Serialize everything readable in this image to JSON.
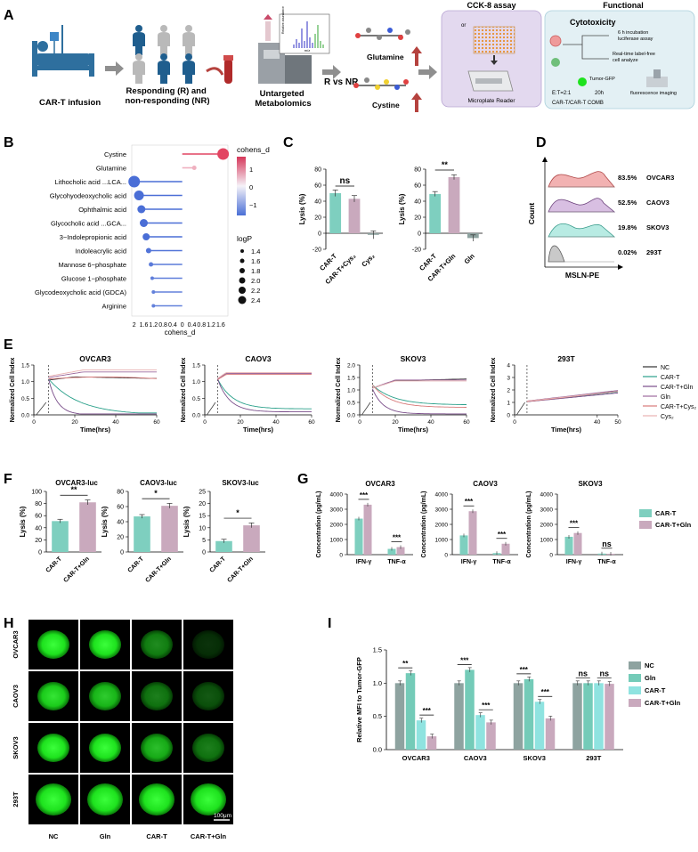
{
  "colors": {
    "teal": "#7ecfbf",
    "mauve": "#c9a9bd",
    "gray": "#8ea3a0",
    "cyan": "#8fe3e0",
    "panelA_purple": "#e3d9ef",
    "panelA_blue": "#e3f0f4",
    "bed": "#2e6f9e",
    "person_blue": "#1f5e8e",
    "person_gray": "#b9b9b9",
    "red_arrow": "#b5423e"
  },
  "panel_letters": [
    "A",
    "B",
    "C",
    "D",
    "E",
    "F",
    "G",
    "H",
    "I"
  ],
  "panelA": {
    "car_t": "CAR-T infusion",
    "responders": "Responding (R) and\nnon-responding (NR)",
    "metabolomics": "Untargeted\nMetabolomics",
    "r_vs_nr": "R vs NR",
    "glutamine": "Glutamine",
    "cystine": "Cystine",
    "cck8_title": "CCK-8 assay",
    "plate_reader": "Microplate Reader",
    "functional_title": "Functional",
    "cytotoxicity": "Cytotoxicity",
    "step1": "6 h incubation\nluciferase assay",
    "step2": "Real-time label-free\ncell analyze",
    "et_ratio": "E:T=2:1",
    "hours": "20h",
    "tumor_gfp": "Tumor-GFP",
    "fluor": "fluorescence imaging",
    "comb": "CAR-T/CAR-T COMB",
    "or": "or",
    "mini_ylabel": "Relative abundance",
    "mini_xlabel": "m/z"
  },
  "panelB": {
    "legend_color_title": "cohens_d",
    "legend_color_ticks": [
      "1",
      "0",
      "−1"
    ],
    "legend_size_title": "logP",
    "legend_size_values": [
      "1.4",
      "1.6",
      "1.8",
      "2.0",
      "2.2",
      "2.4"
    ],
    "xlabel": "cohens_d",
    "xticklabels": [
      "2",
      "1.6",
      "1.2",
      "0.8",
      "0.4",
      "0",
      "0.4",
      "0.8",
      "1.2",
      "1.6"
    ],
    "metabolites": [
      {
        "name": "Cystine",
        "d": 1.7,
        "logP": 2.3
      },
      {
        "name": "Glutamine",
        "d": 0.5,
        "logP": 1.5
      },
      {
        "name": "Lithocholic acid ...LCA...",
        "d": -2.0,
        "logP": 2.3
      },
      {
        "name": "Glycohyodeoxycholic acid",
        "d": -1.8,
        "logP": 2.1
      },
      {
        "name": "Ophthalmic acid",
        "d": -1.7,
        "logP": 1.9
      },
      {
        "name": "Glycocholic acid ...GCA...",
        "d": -1.6,
        "logP": 1.9
      },
      {
        "name": "3−Indolepropionic acid",
        "d": -1.5,
        "logP": 1.8
      },
      {
        "name": "Indoleacrylic acid",
        "d": -1.4,
        "logP": 1.6
      },
      {
        "name": "Mannose 6−phosphate",
        "d": -1.3,
        "logP": 1.5
      },
      {
        "name": "Glucose 1−phosphate",
        "d": -1.25,
        "logP": 1.4
      },
      {
        "name": "Glycodeoxycholic acid (GDCA)",
        "d": -1.2,
        "logP": 1.4
      },
      {
        "name": "Arginine",
        "d": -1.2,
        "logP": 1.4
      }
    ]
  },
  "chart_data": [
    {
      "panel": "C1",
      "type": "bar",
      "ylabel": "Lysis (%)",
      "ylim": [
        -20,
        80
      ],
      "yticks": [
        "80",
        "60",
        "40",
        "20",
        "0",
        "-20"
      ],
      "categories": [
        "CAR-T",
        "CAR-T+Cys₂",
        "Cys₂"
      ],
      "values": [
        50,
        43,
        -2
      ],
      "sig": "ns"
    },
    {
      "panel": "C2",
      "type": "bar",
      "ylabel": "Lysis (%)",
      "ylim": [
        -20,
        80
      ],
      "yticks": [
        "80",
        "60",
        "40",
        "20",
        "0",
        "-20"
      ],
      "categories": [
        "CAR-T",
        "CAR-T+Gln",
        "Gln"
      ],
      "values": [
        49,
        70,
        -6
      ],
      "sig": "**"
    },
    {
      "panel": "D",
      "type": "histogram",
      "xlabel": "MSLN-PE",
      "ylabel": "Count",
      "series": [
        {
          "name": "OVCAR3",
          "pct": "83.5%"
        },
        {
          "name": "CAOV3",
          "pct": "52.5%"
        },
        {
          "name": "SKOV3",
          "pct": "19.8%"
        },
        {
          "name": "293T",
          "pct": "0.02%"
        }
      ]
    },
    {
      "panel": "E",
      "type": "line",
      "xlabel": "Time(hrs)",
      "ylabel": "Normalized Cell Index",
      "legend": [
        "NC",
        "CAR-T",
        "CAR-T+Gln",
        "Gln",
        "CAR-T+Cys₂",
        "Cys₂"
      ],
      "plots": [
        {
          "title": "OVCAR3",
          "ymax": 1.5,
          "yticks": [
            "1.5",
            "1.0",
            "0.5",
            "0.0"
          ],
          "xmax": 60,
          "xticks": [
            "0",
            "20",
            "40",
            "60"
          ]
        },
        {
          "title": "CAOV3",
          "ymax": 1.5,
          "yticks": [
            "1.5",
            "1.0",
            "0.5",
            "0.0"
          ],
          "xmax": 60,
          "xticks": [
            "0",
            "20",
            "40",
            "60"
          ]
        },
        {
          "title": "SKOV3",
          "ymax": 2.0,
          "yticks": [
            "2.0",
            "1.5",
            "1.0",
            "0.5",
            "0.0"
          ],
          "xmax": 60,
          "xticks": [
            "0",
            "20",
            "40",
            "60"
          ]
        },
        {
          "title": "293T",
          "ymax": 4,
          "yticks": [
            "4",
            "3",
            "2",
            "1",
            "0"
          ],
          "xmax": 50,
          "xticks": [
            "0",
            "40",
            "50"
          ]
        }
      ]
    },
    {
      "panel": "F",
      "type": "bar",
      "ylabel": "Lysis (%)",
      "categories": [
        "CAR-T",
        "CAR-T+Gln"
      ],
      "plots": [
        {
          "title": "OVCAR3-luc",
          "ylim": [
            0,
            100
          ],
          "yticks": [
            "100",
            "80",
            "60",
            "40",
            "20",
            "0"
          ],
          "values": [
            51,
            82
          ],
          "sig": "**"
        },
        {
          "title": "CAOV3-luc",
          "ylim": [
            0,
            80
          ],
          "yticks": [
            "80",
            "60",
            "40",
            "20",
            "0"
          ],
          "values": [
            47,
            61
          ],
          "sig": "*"
        },
        {
          "title": "SKOV3-luc",
          "ylim": [
            0,
            25
          ],
          "yticks": [
            "25",
            "20",
            "15",
            "10",
            "5",
            "0"
          ],
          "values": [
            4.5,
            11
          ],
          "sig": "*"
        }
      ]
    },
    {
      "panel": "G",
      "type": "bar",
      "ylabel": "Concentration (pg/mL)",
      "ylim": [
        0,
        4000
      ],
      "yticks": [
        "4000",
        "3000",
        "2000",
        "1000",
        "0"
      ],
      "categories": [
        "IFN-γ",
        "TNF-α"
      ],
      "legend": [
        "CAR-T",
        "CAR-T+Gln"
      ],
      "plots": [
        {
          "title": "OVCAR3",
          "series": [
            [
              2380,
              380
            ],
            [
              3300,
              500
            ]
          ],
          "sig": [
            "***",
            "***"
          ]
        },
        {
          "title": "CAOV3",
          "series": [
            [
              1270,
              100
            ],
            [
              2870,
              720
            ]
          ],
          "sig": [
            "***",
            "***"
          ]
        },
        {
          "title": "SKOV3",
          "series": [
            [
              1180,
              70
            ],
            [
              1430,
              60
            ]
          ],
          "sig": [
            "***",
            "ns"
          ]
        }
      ]
    },
    {
      "panel": "I",
      "type": "bar",
      "ylabel": "Relative MFI to Tumor-GFP",
      "ylim": [
        0,
        1.5
      ],
      "yticks": [
        "1.5",
        "1.0",
        "0.5",
        "0.0"
      ],
      "categories": [
        "OVCAR3",
        "CAOV3",
        "SKOV3",
        "293T"
      ],
      "legend": [
        "NC",
        "Gln",
        "CAR-T",
        "CAR-T+Gln"
      ],
      "series": [
        {
          "name": "NC",
          "values": [
            1.0,
            1.0,
            1.0,
            1.0
          ]
        },
        {
          "name": "Gln",
          "values": [
            1.15,
            1.2,
            1.06,
            1.0
          ]
        },
        {
          "name": "CAR-T",
          "values": [
            0.44,
            0.52,
            0.72,
            1.0
          ]
        },
        {
          "name": "CAR-T+Gln",
          "values": [
            0.2,
            0.41,
            0.47,
            0.99
          ]
        }
      ],
      "sig": [
        [
          "**",
          "***"
        ],
        [
          "***",
          "***"
        ],
        [
          "***",
          "***"
        ],
        [
          "ns",
          "ns"
        ]
      ]
    }
  ],
  "panelH": {
    "rows": [
      "OVCAR3",
      "CAOV3",
      "SKOV3",
      "293T"
    ],
    "cols": [
      "NC",
      "Gln",
      "CAR-T",
      "CAR-T+Gln"
    ],
    "scalebar": "100μm",
    "intensity": [
      [
        1,
        1,
        0.55,
        0.2
      ],
      [
        0.9,
        0.8,
        0.5,
        0.35
      ],
      [
        1,
        1,
        0.75,
        0.5
      ],
      [
        1,
        1,
        1,
        1
      ]
    ]
  }
}
